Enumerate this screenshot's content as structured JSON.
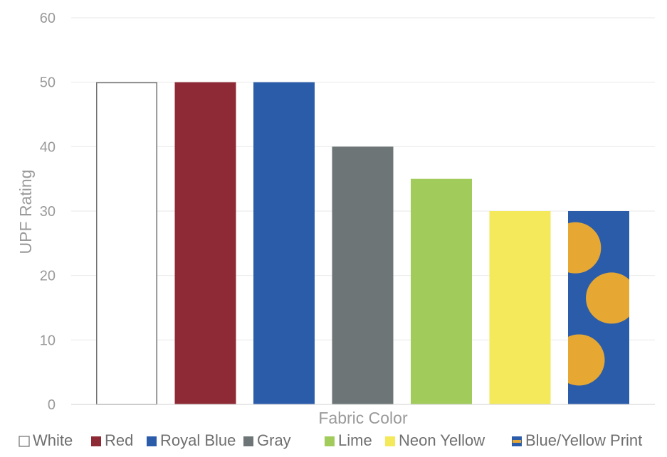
{
  "chart_data": {
    "type": "bar",
    "xlabel": "Fabric Color",
    "ylabel": "UPF Rating",
    "ylim": [
      0,
      60
    ],
    "yticks": [
      0,
      10,
      20,
      30,
      40,
      50,
      60
    ],
    "grid": true,
    "legend_position": "bottom",
    "series": [
      {
        "name": "White",
        "value": 50,
        "color": "#ffffff",
        "stroke": "#6f6f6f",
        "pattern": "solid"
      },
      {
        "name": "Red",
        "value": 50,
        "color": "#8e2a35",
        "pattern": "solid"
      },
      {
        "name": "Royal Blue",
        "value": 50,
        "color": "#2b5caa",
        "pattern": "solid"
      },
      {
        "name": "Gray",
        "value": 40,
        "color": "#6d7576",
        "pattern": "solid"
      },
      {
        "name": "Lime",
        "value": 35,
        "color": "#a1cb5a",
        "pattern": "solid"
      },
      {
        "name": "Neon Yellow",
        "value": 30,
        "color": "#f4e95a",
        "pattern": "solid"
      },
      {
        "name": "Blue/Yellow Print",
        "value": 30,
        "color": "#2b5caa",
        "dot_color": "#e6a833",
        "pattern": "dots"
      }
    ]
  }
}
